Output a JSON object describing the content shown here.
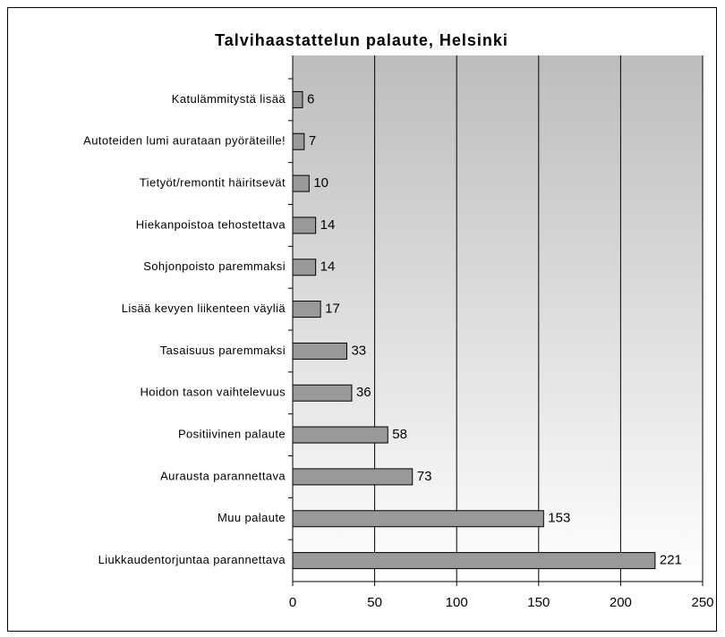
{
  "chart_data": {
    "type": "bar",
    "orientation": "horizontal",
    "title": "Talvihaastattelun palaute, Helsinki",
    "categories": [
      "Katulämmitystä lisää",
      "Autoteiden lumi aurataan pyöräteille!",
      "Tietyöt/remontit häiritsevät",
      "Hiekanpoistoa tehostettava",
      "Sohjonpoisto paremmaksi",
      "Lisää kevyen liikenteen väyliä",
      "Tasaisuus paremmaksi",
      "Hoidon tason vaihtelevuus",
      "Positiivinen palaute",
      "Aurausta parannettava",
      "Muu palaute",
      "Liukkaudentorjuntaa parannettava"
    ],
    "values": [
      6,
      7,
      10,
      14,
      14,
      17,
      33,
      36,
      58,
      73,
      153,
      221
    ],
    "color": "#999999",
    "xlim": [
      0,
      250
    ],
    "xticks": [
      0,
      50,
      100,
      150,
      200,
      250
    ],
    "grid": true
  }
}
